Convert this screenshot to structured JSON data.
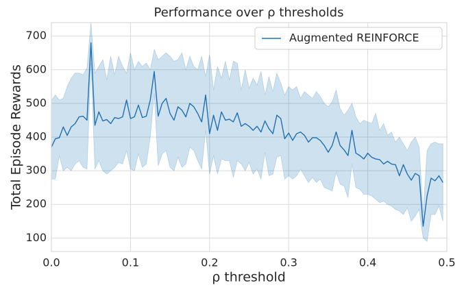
{
  "chart_data": {
    "type": "line",
    "title": "Performance over ρ thresholds",
    "xlabel": "ρ threshold",
    "ylabel": "Total Episode Rewards",
    "xlim": [
      0,
      0.5
    ],
    "ylim": [
      60,
      740
    ],
    "xticks": [
      {
        "value": 0,
        "label": "0.0"
      },
      0.1,
      0.2,
      0.3,
      0.4,
      0.5
    ],
    "yticks": [
      100,
      200,
      300,
      400,
      500,
      600,
      700
    ],
    "grid": true,
    "legend": "upper right",
    "x": [
      0,
      0.005,
      0.01,
      0.015,
      0.02,
      0.025,
      0.03,
      0.035,
      0.04,
      0.045,
      0.05,
      0.055,
      0.06,
      0.065,
      0.07,
      0.075,
      0.08,
      0.085,
      0.09,
      0.095,
      0.1,
      0.105,
      0.11,
      0.115,
      0.12,
      0.125,
      0.13,
      0.135,
      0.14,
      0.145,
      0.15,
      0.155,
      0.16,
      0.165,
      0.17,
      0.175,
      0.18,
      0.185,
      0.19,
      0.195,
      0.2,
      0.205,
      0.21,
      0.215,
      0.22,
      0.225,
      0.23,
      0.235,
      0.24,
      0.245,
      0.25,
      0.255,
      0.26,
      0.265,
      0.27,
      0.275,
      0.28,
      0.285,
      0.29,
      0.295,
      0.3,
      0.305,
      0.31,
      0.315,
      0.32,
      0.325,
      0.33,
      0.335,
      0.34,
      0.345,
      0.35,
      0.355,
      0.36,
      0.365,
      0.37,
      0.375,
      0.38,
      0.385,
      0.39,
      0.395,
      0.4,
      0.405,
      0.41,
      0.415,
      0.42,
      0.425,
      0.43,
      0.435,
      0.44,
      0.445,
      0.45,
      0.455,
      0.46,
      0.465,
      0.47,
      0.475,
      0.48,
      0.485,
      0.49,
      0.495
    ],
    "series": [
      {
        "name": "Augmented REINFORCE",
        "color": "#1f6fb2",
        "band_color": "#1f77b4",
        "values": [
          370,
          395,
          398,
          430,
          405,
          430,
          440,
          460,
          462,
          450,
          680,
          435,
          475,
          448,
          452,
          440,
          458,
          455,
          460,
          510,
          455,
          460,
          495,
          458,
          462,
          510,
          595,
          462,
          500,
          515,
          470,
          450,
          490,
          480,
          460,
          500,
          490,
          470,
          445,
          525,
          410,
          465,
          420,
          475,
          450,
          453,
          445,
          472,
          432,
          440,
          432,
          420,
          432,
          415,
          448,
          425,
          410,
          465,
          455,
          395,
          412,
          390,
          410,
          415,
          405,
          385,
          398,
          398,
          390,
          375,
          355,
          375,
          415,
          375,
          362,
          345,
          420,
          352,
          345,
          335,
          352,
          340,
          335,
          333,
          320,
          328,
          320,
          318,
          285,
          318,
          290,
          272,
          292,
          285,
          135,
          225,
          278,
          270,
          285,
          265
        ],
        "upper": [
          510,
          525,
          510,
          515,
          550,
          575,
          590,
          590,
          585,
          605,
          740,
          590,
          610,
          630,
          570,
          640,
          585,
          640,
          610,
          590,
          650,
          600,
          625,
          610,
          620,
          600,
          660,
          630,
          640,
          650,
          640,
          625,
          630,
          650,
          600,
          640,
          610,
          600,
          640,
          580,
          645,
          540,
          610,
          575,
          625,
          570,
          625,
          620,
          540,
          600,
          545,
          575,
          555,
          595,
          525,
          580,
          535,
          590,
          560,
          525,
          550,
          540,
          550,
          515,
          535,
          525,
          515,
          535,
          520,
          500,
          490,
          505,
          540,
          485,
          465,
          480,
          500,
          460,
          440,
          450,
          445,
          440,
          470,
          420,
          440,
          405,
          415,
          385,
          400,
          380,
          360,
          385,
          400,
          370,
          175,
          360,
          380,
          385,
          380,
          380
        ],
        "lower": [
          275,
          275,
          345,
          300,
          310,
          300,
          320,
          330,
          310,
          305,
          620,
          305,
          330,
          300,
          290,
          300,
          310,
          325,
          320,
          360,
          305,
          300,
          350,
          310,
          320,
          400,
          530,
          315,
          350,
          360,
          310,
          300,
          340,
          310,
          320,
          370,
          360,
          330,
          305,
          420,
          290,
          345,
          290,
          335,
          330,
          330,
          280,
          330,
          320,
          300,
          325,
          290,
          305,
          275,
          355,
          285,
          290,
          340,
          345,
          275,
          285,
          275,
          285,
          305,
          285,
          265,
          280,
          265,
          275,
          250,
          245,
          240,
          295,
          260,
          255,
          220,
          320,
          250,
          245,
          230,
          230,
          225,
          215,
          205,
          210,
          200,
          195,
          185,
          180,
          170,
          190,
          150,
          165,
          185,
          100,
          90,
          170,
          170,
          195,
          150
        ]
      }
    ]
  }
}
